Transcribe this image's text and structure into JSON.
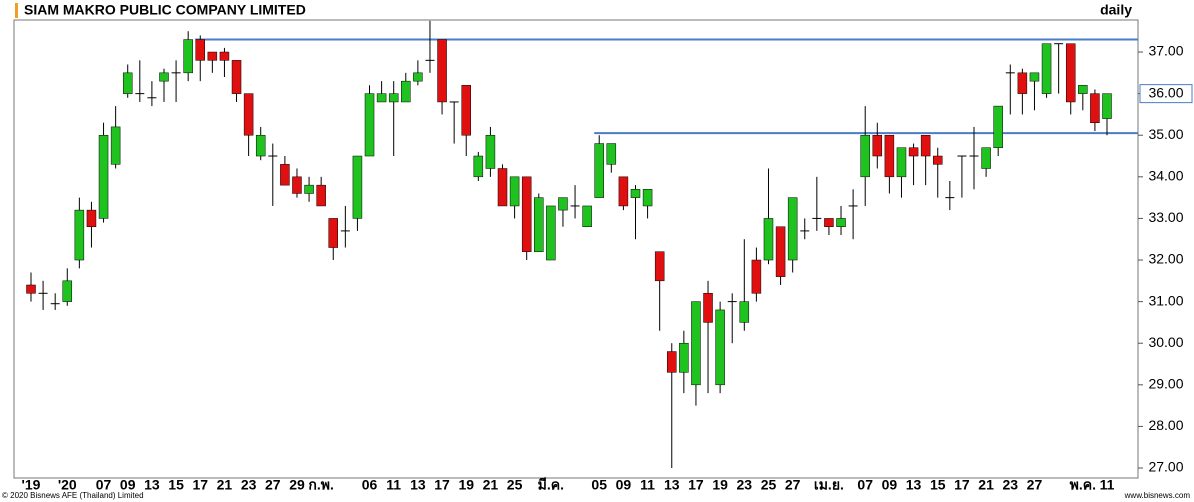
{
  "chart_data": {
    "type": "candlestick",
    "title": "SIAM MAKRO PUBLIC COMPANY LIMITED",
    "subtitle": "daily",
    "footer_left": "© 2020 Bisnews AFE (Thailand) Limited",
    "footer_right": "www.bisnews.com",
    "categories": [
      "'19",
      null,
      null,
      "'20",
      null,
      null,
      "07",
      null,
      "09",
      null,
      "13",
      null,
      "15",
      null,
      "17",
      null,
      "21",
      null,
      "23",
      null,
      "27",
      null,
      "29",
      null,
      "ก.พ.",
      null,
      null,
      null,
      "06",
      null,
      "11",
      null,
      "13",
      null,
      "17",
      null,
      "19",
      null,
      "21",
      null,
      "25",
      null,
      null,
      "มี.ค.",
      null,
      null,
      null,
      "05",
      null,
      "09",
      null,
      "11",
      null,
      "13",
      null,
      "17",
      null,
      "19",
      null,
      "23",
      null,
      "25",
      null,
      "27",
      null,
      null,
      "เม.ย.",
      null,
      null,
      "07",
      null,
      "09",
      null,
      "13",
      null,
      "15",
      null,
      "17",
      null,
      "21",
      null,
      "23",
      null,
      "27",
      null,
      null,
      null,
      "พ.ค.",
      null,
      "11"
    ],
    "open": [
      31.4,
      31.2,
      30.95,
      31.0,
      32.0,
      33.2,
      33.0,
      34.3,
      36.0,
      36.0,
      35.9,
      36.3,
      36.5,
      36.5,
      37.3,
      37.0,
      37.0,
      36.8,
      36.0,
      34.5,
      34.5,
      34.3,
      34.0,
      33.6,
      33.8,
      33.0,
      32.7,
      33.0,
      34.5,
      35.8,
      35.8,
      35.8,
      36.3,
      36.8,
      37.3,
      35.8,
      36.2,
      34.0,
      34.2,
      34.2,
      33.3,
      34.0,
      32.2,
      32.0,
      33.2,
      33.3,
      32.8,
      33.5,
      34.3,
      34.0,
      33.5,
      33.3,
      32.2,
      29.8,
      29.3,
      29.0,
      31.2,
      29.0,
      31.0,
      30.5,
      32.0,
      32.0,
      32.8,
      32.0,
      32.7,
      33.0,
      33.0,
      32.8,
      33.3,
      34.0,
      35.0,
      35.0,
      34.0,
      34.7,
      35.0,
      34.5,
      33.5,
      34.5,
      34.5,
      34.2,
      34.7,
      36.5,
      36.5,
      36.3,
      36.0,
      37.2,
      37.2,
      36.0,
      36.0,
      35.4
    ],
    "high": [
      31.7,
      31.5,
      31.2,
      31.8,
      33.5,
      33.4,
      35.3,
      35.7,
      36.7,
      36.8,
      36.3,
      36.6,
      36.8,
      37.5,
      37.4,
      37.0,
      37.1,
      36.8,
      36.0,
      35.2,
      34.8,
      34.5,
      34.2,
      34.0,
      34.0,
      33.0,
      33.3,
      34.5,
      36.2,
      36.3,
      36.3,
      36.5,
      36.8,
      37.75,
      37.3,
      35.8,
      36.2,
      34.6,
      35.2,
      34.3,
      34.0,
      34.0,
      33.6,
      33.3,
      33.5,
      33.8,
      33.3,
      35.0,
      34.8,
      34.0,
      33.8,
      33.7,
      32.2,
      30.0,
      30.3,
      31.0,
      31.5,
      31.0,
      31.2,
      32.5,
      32.3,
      34.2,
      32.8,
      33.5,
      33.0,
      34.0,
      33.0,
      33.3,
      33.7,
      35.7,
      35.3,
      35.0,
      34.7,
      34.8,
      35.0,
      34.7,
      33.9,
      34.5,
      35.2,
      34.7,
      35.7,
      36.7,
      36.6,
      36.5,
      37.2,
      37.2,
      37.2,
      36.2,
      36.1,
      36.0
    ],
    "low": [
      31.0,
      30.8,
      30.8,
      30.9,
      31.8,
      32.3,
      32.9,
      34.2,
      35.9,
      35.8,
      35.7,
      35.8,
      35.8,
      36.3,
      36.3,
      36.5,
      36.4,
      35.8,
      34.5,
      34.4,
      33.3,
      33.8,
      33.5,
      33.4,
      33.3,
      32.0,
      32.3,
      32.7,
      34.5,
      35.8,
      34.5,
      35.8,
      36.2,
      36.5,
      35.5,
      34.8,
      34.5,
      33.9,
      34.0,
      33.3,
      33.0,
      32.0,
      32.2,
      32.0,
      32.8,
      33.0,
      32.8,
      33.5,
      34.1,
      33.2,
      32.5,
      33.0,
      30.3,
      27.0,
      28.8,
      28.5,
      28.8,
      28.8,
      30.0,
      30.3,
      31.0,
      31.9,
      31.4,
      31.7,
      32.5,
      32.7,
      32.6,
      32.6,
      32.5,
      33.3,
      34.2,
      33.6,
      33.5,
      33.8,
      33.8,
      33.5,
      33.2,
      33.5,
      33.7,
      34.0,
      34.5,
      35.5,
      35.5,
      35.6,
      35.9,
      36.0,
      35.5,
      35.6,
      35.1,
      35.0
    ],
    "close": [
      31.2,
      31.2,
      30.95,
      31.5,
      33.2,
      32.8,
      35.0,
      35.2,
      36.5,
      36.0,
      35.9,
      36.5,
      36.5,
      37.3,
      36.8,
      36.8,
      36.8,
      36.0,
      35.0,
      35.0,
      34.5,
      33.8,
      33.6,
      33.8,
      33.3,
      32.3,
      32.7,
      34.5,
      36.0,
      36.0,
      36.0,
      36.3,
      36.5,
      36.8,
      35.8,
      35.8,
      35.0,
      34.5,
      35.0,
      33.3,
      34.0,
      32.2,
      33.5,
      33.3,
      33.5,
      33.3,
      33.3,
      34.8,
      34.8,
      33.3,
      33.7,
      33.7,
      31.5,
      29.3,
      30.0,
      31.0,
      30.5,
      30.8,
      31.0,
      31.0,
      31.2,
      33.0,
      31.6,
      33.5,
      32.7,
      33.0,
      32.8,
      33.0,
      33.3,
      35.0,
      34.5,
      34.0,
      34.7,
      34.5,
      34.5,
      34.3,
      33.5,
      34.5,
      34.5,
      34.7,
      35.7,
      36.5,
      36.0,
      36.5,
      37.2,
      37.2,
      35.8,
      36.2,
      35.3,
      36.0
    ],
    "up_color": "#1fc21f",
    "down_color": "#e01010",
    "hlines": [
      {
        "value": 37.3,
        "start": 14
      },
      {
        "value": 35.05,
        "start": 47
      }
    ],
    "hline_color": "#4a7cc8",
    "last_price": {
      "value": 36.0,
      "label": "36.00"
    },
    "ylim": [
      26.76,
      37.77
    ],
    "yticks": [
      {
        "value": 27,
        "label": "27.00"
      },
      {
        "value": 28,
        "label": "28.00"
      },
      {
        "value": 29,
        "label": "29.00"
      },
      {
        "value": 30,
        "label": "30.00"
      },
      {
        "value": 31,
        "label": "31.00"
      },
      {
        "value": 32,
        "label": "32.00"
      },
      {
        "value": 33,
        "label": "33.00"
      },
      {
        "value": 34,
        "label": "34.00"
      },
      {
        "value": 35,
        "label": "35.00"
      },
      {
        "value": 36,
        "label": "36.00"
      },
      {
        "value": 37,
        "label": "37.00"
      }
    ]
  }
}
